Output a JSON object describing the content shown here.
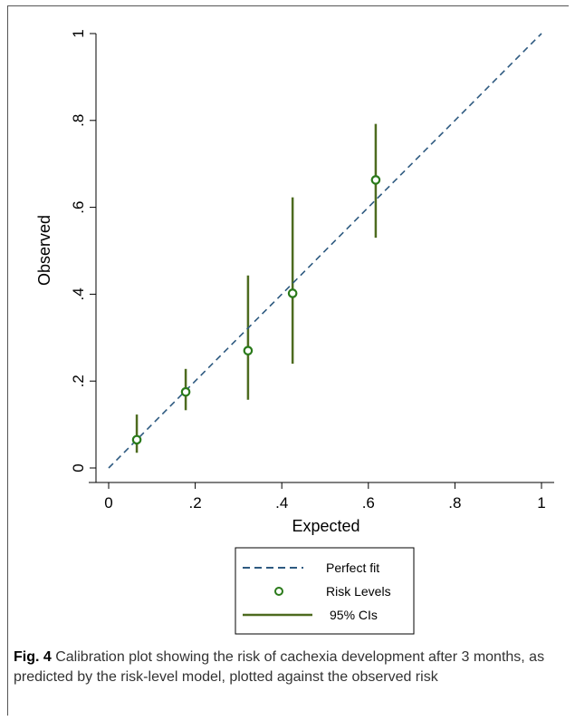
{
  "figure": {
    "label": "Fig. 4",
    "caption": " Calibration plot showing the risk of cachexia development after 3 months, as predicted by the risk-level model, plotted against the observed risk"
  },
  "chart_data": {
    "type": "scatter",
    "xlabel": "Expected",
    "ylabel": "Observed",
    "xlim": [
      0,
      1
    ],
    "ylim": [
      0,
      1
    ],
    "x_ticks": [
      0,
      0.2,
      0.4,
      0.6,
      0.8,
      1
    ],
    "x_tick_labels": [
      "0",
      ".2",
      ".4",
      ".6",
      ".8",
      "1"
    ],
    "y_ticks": [
      0,
      0.2,
      0.4,
      0.6,
      0.8,
      1
    ],
    "y_tick_labels": [
      "0",
      ".2",
      ".4",
      ".6",
      ".8",
      "1"
    ],
    "grid": false,
    "legend_position": "bottom",
    "series": [
      {
        "name": "Perfect fit",
        "kind": "dashed-line",
        "color": "#2e5a80",
        "x": [
          0,
          1
        ],
        "y": [
          0,
          1
        ]
      },
      {
        "name": "Risk Levels",
        "kind": "markers",
        "color": "#2a7a1a",
        "points": [
          {
            "x": 0.065,
            "y": 0.065
          },
          {
            "x": 0.178,
            "y": 0.175
          },
          {
            "x": 0.322,
            "y": 0.27
          },
          {
            "x": 0.425,
            "y": 0.402
          },
          {
            "x": 0.617,
            "y": 0.663
          }
        ]
      },
      {
        "name": "95% CIs",
        "kind": "error-bars",
        "color": "#4d6b1f",
        "intervals": [
          {
            "x": 0.065,
            "low": 0.035,
            "high": 0.123
          },
          {
            "x": 0.178,
            "low": 0.133,
            "high": 0.228
          },
          {
            "x": 0.322,
            "low": 0.157,
            "high": 0.443
          },
          {
            "x": 0.425,
            "low": 0.24,
            "high": 0.623
          },
          {
            "x": 0.617,
            "low": 0.53,
            "high": 0.792
          }
        ]
      }
    ],
    "legend_entries": [
      "Perfect fit",
      "Risk Levels",
      "95% CIs"
    ]
  }
}
